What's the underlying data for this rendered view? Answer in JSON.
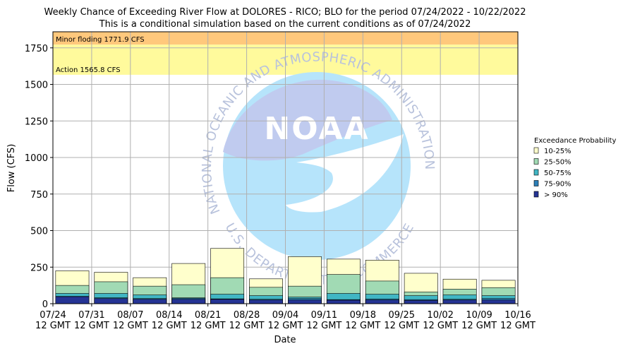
{
  "chart_data": {
    "type": "bar",
    "title_line1": "Weekly Chance of Exceeding River Flow at DOLORES - RICO; BLO for the period 07/24/2022 - 10/22/2022",
    "title_line2": "This is a conditional simulation based on the current conditions as of 07/24/2022",
    "xlabel": "Date",
    "ylabel": "Flow (CFS)",
    "ylim": [
      0,
      1860
    ],
    "yticks": [
      0,
      250,
      500,
      750,
      1000,
      1250,
      1500,
      1750
    ],
    "grid": true,
    "x_tick_labels": [
      [
        "07/24",
        "12 GMT"
      ],
      [
        "07/31",
        "12 GMT"
      ],
      [
        "08/07",
        "12 GMT"
      ],
      [
        "08/14",
        "12 GMT"
      ],
      [
        "08/21",
        "12 GMT"
      ],
      [
        "08/28",
        "12 GMT"
      ],
      [
        "09/04",
        "12 GMT"
      ],
      [
        "09/11",
        "12 GMT"
      ],
      [
        "09/18",
        "12 GMT"
      ],
      [
        "09/25",
        "12 GMT"
      ],
      [
        "10/02",
        "12 GMT"
      ],
      [
        "10/09",
        "12 GMT"
      ],
      [
        "10/16",
        "12 GMT"
      ]
    ],
    "thresholds": [
      {
        "label": "Minor floding 1771.9 CFS",
        "value": 1771.9,
        "color": "#ffc87c"
      },
      {
        "label": "Action 1565.8 CFS",
        "value": 1565.8,
        "color": "#fffa9c"
      }
    ],
    "legend_title": "Exceedance Probability",
    "legend_position": "right",
    "series": [
      {
        "name": "10-25%",
        "color": "#ffffcc",
        "values": [
          225,
          215,
          178,
          275,
          378,
          170,
          322,
          305,
          298,
          208,
          168,
          160
        ]
      },
      {
        "name": "25-50%",
        "color": "#a1dab4",
        "values": [
          125,
          150,
          120,
          130,
          178,
          112,
          120,
          200,
          155,
          80,
          100,
          110
        ]
      },
      {
        "name": "50-75%",
        "color": "#41b6c4",
        "values": [
          70,
          70,
          60,
          40,
          65,
          55,
          45,
          70,
          65,
          55,
          60,
          55
        ]
      },
      {
        "name": "75-90%",
        "color": "#2c7fb8",
        "values": [
          50,
          40,
          35,
          38,
          33,
          30,
          35,
          28,
          32,
          28,
          30,
          35
        ]
      },
      {
        "name": "> 90%",
        "color": "#253494",
        "values": [
          48,
          35,
          30,
          30,
          30,
          25,
          25,
          24,
          25,
          22,
          25,
          25
        ]
      }
    ],
    "watermark": {
      "top_text": "NATIONAL OCEANIC AND ATMOSPHERIC ADMINISTRATION",
      "bottom_text": "U.S. DEPARTMENT OF COMMERCE",
      "center_text": "NOAA"
    }
  }
}
